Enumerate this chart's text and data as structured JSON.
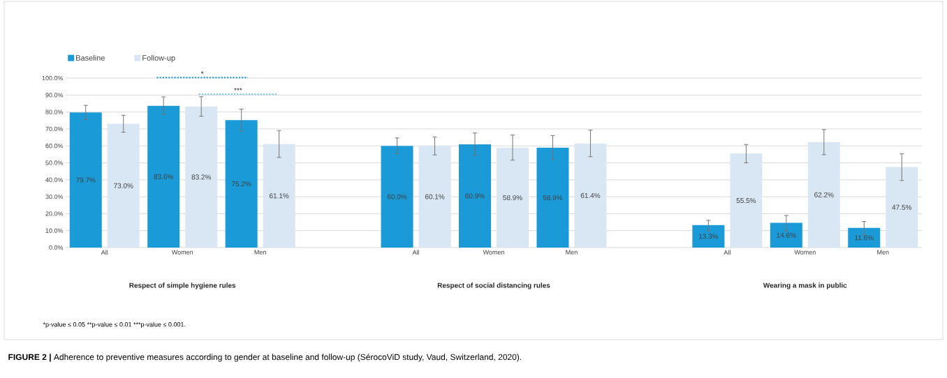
{
  "chart_data": {
    "type": "bar",
    "categories": [
      "All",
      "Women",
      "Men",
      null,
      "All",
      "Women",
      "Men",
      null,
      "All",
      "Women",
      "Men"
    ],
    "series": [
      {
        "name": "Baseline",
        "color": "#1a9ad6",
        "values": [
          79.7,
          83.6,
          75.2,
          null,
          60.0,
          60.9,
          58.9,
          null,
          13.3,
          14.6,
          11.6
        ],
        "errors": [
          [
            75.6,
            83.9
          ],
          [
            78.5,
            88.9
          ],
          [
            68.6,
            81.7
          ],
          null,
          [
            55.3,
            64.7
          ],
          [
            54.4,
            67.6
          ],
          [
            51.9,
            66.1
          ],
          null,
          [
            9.9,
            16.1
          ],
          [
            9.8,
            18.9
          ],
          [
            7.4,
            15.4
          ]
        ],
        "value_labels": [
          "79.7%",
          "83.6%",
          "75.2%",
          null,
          "60.0%",
          "60.9%",
          "58.9%",
          null,
          "13.3%",
          "14.6%",
          "11.6%"
        ]
      },
      {
        "name": "Follow-up",
        "color": "#d9e7f5",
        "values": [
          73.0,
          83.2,
          61.1,
          null,
          60.1,
          58.9,
          61.4,
          null,
          55.5,
          62.2,
          47.5
        ],
        "errors": [
          [
            68.1,
            78.1
          ],
          [
            77.5,
            89.0
          ],
          [
            53.2,
            69.0
          ],
          null,
          [
            54.7,
            65.3
          ],
          [
            51.6,
            66.4
          ],
          [
            53.6,
            69.3
          ],
          null,
          [
            50.0,
            60.8
          ],
          [
            54.8,
            69.6
          ],
          [
            39.6,
            55.4
          ]
        ],
        "value_labels": [
          "73.0%",
          "83.2%",
          "61.1%",
          null,
          "60.1%",
          "58.9%",
          "61.4%",
          null,
          "55.5%",
          "62.2%",
          "47.5%"
        ]
      }
    ],
    "ylim": [
      0,
      100
    ],
    "yticks": [
      {
        "value": 0,
        "label": "0.0%"
      },
      {
        "value": 10,
        "label": "10.0%"
      },
      {
        "value": 20,
        "label": "20.0%"
      },
      {
        "value": 30,
        "label": "30.0%"
      },
      {
        "value": 40,
        "label": "40.0%"
      },
      {
        "value": 50,
        "label": "50.0%"
      },
      {
        "value": 60,
        "label": "60.0%"
      },
      {
        "value": 70,
        "label": "70.0%"
      },
      {
        "value": 80,
        "label": "80.0%"
      },
      {
        "value": 90,
        "label": "90.0%"
      },
      {
        "value": 100,
        "label": "100.0%"
      }
    ],
    "grid": "y",
    "legend": "top left",
    "annotations": [
      "Respect of simple hygiene rules",
      "Respect of social distancing rules",
      "Wearing a mask in public",
      "*",
      "***",
      "*p-value ≤ 0.05",
      "**p-value ≤ 0.01",
      "***p-value ≤ 0.001.",
      "**FIGURE 2 |** Adherence to preventive measures according to gender at baseline and follow-up (SérocoViD study, Vaud, Switzerland, 2020)."
    ]
  }
}
